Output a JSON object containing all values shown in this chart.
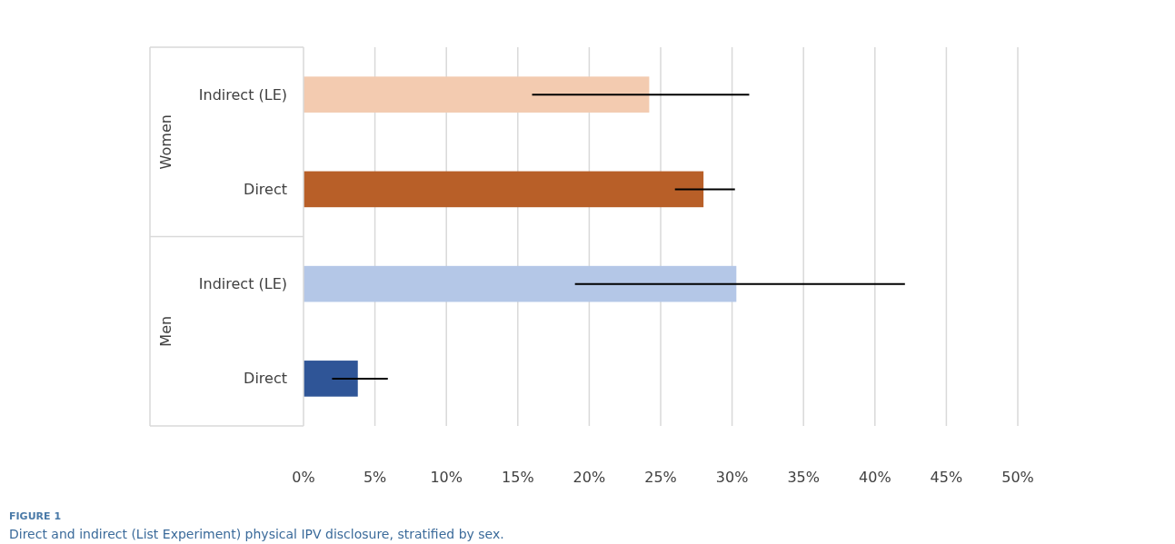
{
  "chart_data": {
    "type": "bar",
    "orientation": "horizontal",
    "categories": [
      "Indirect (LE)",
      "Direct",
      "Indirect (LE)",
      "Direct"
    ],
    "values": [
      24.2,
      28,
      30.3,
      3.8
    ],
    "colors": [
      "#f3cbb0",
      "#b85f28",
      "#b4c7e7",
      "#2f5597"
    ],
    "errors": [
      [
        16,
        31.2
      ],
      [
        26,
        30.2
      ],
      [
        19,
        42.1
      ],
      [
        2,
        5.9
      ]
    ],
    "xlim": [
      0,
      50
    ],
    "xticks": [
      {
        "value": 0,
        "label": "0%"
      },
      {
        "value": 5,
        "label": "5%"
      },
      {
        "value": 10,
        "label": "10%"
      },
      {
        "value": 15,
        "label": "15%"
      },
      {
        "value": 20,
        "label": "20%"
      },
      {
        "value": 25,
        "label": "25%"
      },
      {
        "value": 30,
        "label": "30%"
      },
      {
        "value": 35,
        "label": "35%"
      },
      {
        "value": 40,
        "label": "40%"
      },
      {
        "value": 45,
        "label": "45%"
      },
      {
        "value": 50,
        "label": "50%"
      }
    ],
    "grid": "x",
    "annotations": [
      "Women",
      "Men",
      "FIGURE 1",
      "Direct and indirect (List Experiment) physical IPV disclosure, stratified by sex."
    ]
  }
}
